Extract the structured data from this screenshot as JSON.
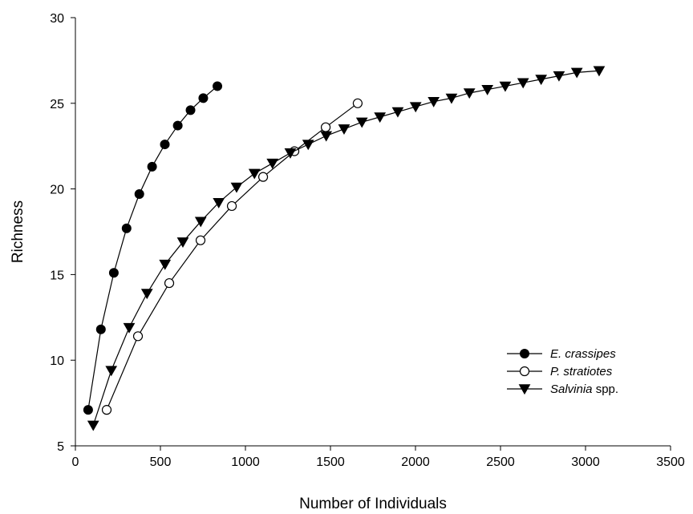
{
  "chart_data": {
    "type": "line",
    "title": "",
    "xlabel": "Number of Individuals",
    "ylabel": "Richness",
    "xlim": [
      0,
      3500
    ],
    "ylim": [
      5,
      30
    ],
    "xticks": [
      0,
      500,
      1000,
      1500,
      2000,
      2500,
      3000,
      3500
    ],
    "yticks": [
      5,
      10,
      15,
      20,
      25,
      30
    ],
    "xtick_labels": [
      "0",
      "500",
      "1000",
      "1500",
      "2000",
      "2500",
      "3000",
      "3500"
    ],
    "ytick_labels": [
      "5",
      "10",
      "15",
      "20",
      "25",
      "30"
    ],
    "grid": false,
    "legend_position": "lower-right",
    "series": [
      {
        "name": "E. crassipes",
        "name_italic": "E. crassipes",
        "name_suffix": "",
        "marker": "filled-circle",
        "color": "#000000",
        "x": [
          75,
          150,
          226,
          301,
          376,
          451,
          526,
          602,
          677,
          752,
          835
        ],
        "y": [
          7.1,
          11.8,
          15.1,
          17.7,
          19.7,
          21.3,
          22.6,
          23.7,
          24.6,
          25.3,
          26.0
        ]
      },
      {
        "name": "P. stratiotes",
        "name_italic": "P. stratiotes",
        "name_suffix": "",
        "marker": "open-circle",
        "color": "#000000",
        "x": [
          184,
          368,
          552,
          736,
          920,
          1104,
          1288,
          1472,
          1660
        ],
        "y": [
          7.1,
          11.4,
          14.5,
          17.0,
          19.0,
          20.7,
          22.2,
          23.6,
          25.0
        ]
      },
      {
        "name": "Salvinia spp.",
        "name_italic": "Salvinia",
        "name_suffix": " spp.",
        "marker": "filled-triangle-down",
        "color": "#000000",
        "x": [
          105,
          211,
          316,
          421,
          527,
          632,
          737,
          843,
          948,
          1053,
          1159,
          1264,
          1369,
          1475,
          1580,
          1685,
          1791,
          1896,
          2001,
          2107,
          2212,
          2317,
          2423,
          2528,
          2633,
          2739,
          2844,
          2949,
          3080
        ],
        "y": [
          6.2,
          9.4,
          11.9,
          13.9,
          15.6,
          16.9,
          18.1,
          19.2,
          20.1,
          20.9,
          21.5,
          22.1,
          22.6,
          23.1,
          23.5,
          23.9,
          24.2,
          24.5,
          24.8,
          25.1,
          25.3,
          25.6,
          25.8,
          26.0,
          26.2,
          26.4,
          26.6,
          26.8,
          26.9
        ]
      }
    ]
  }
}
